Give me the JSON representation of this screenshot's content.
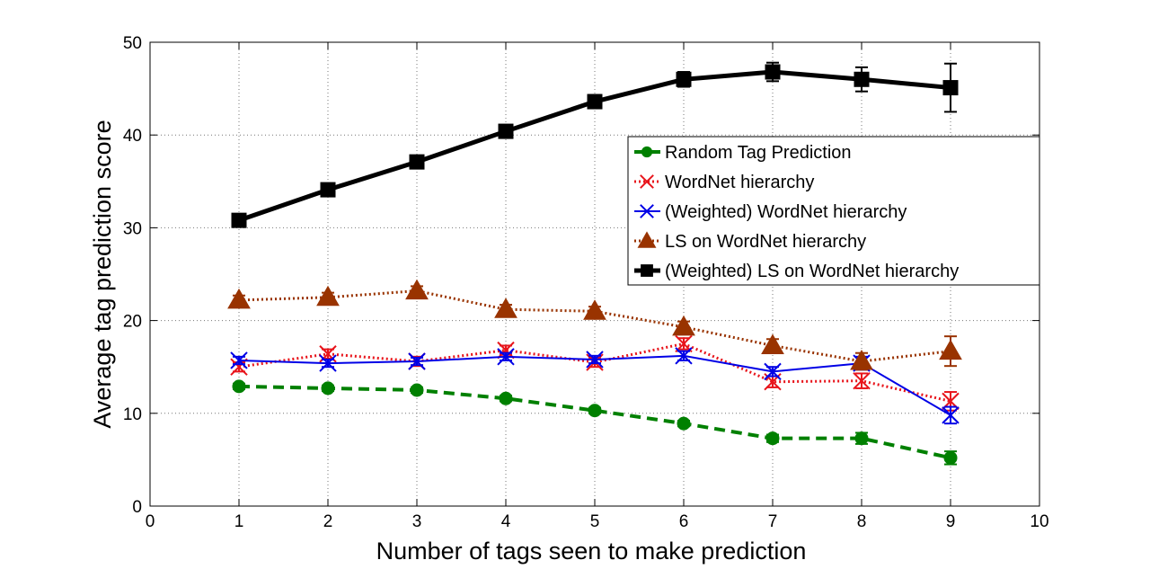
{
  "chart_data": {
    "type": "line",
    "title": "",
    "xlabel": "Number of tags seen to make prediction",
    "ylabel": "Average tag prediction score",
    "xlim": [
      0,
      10
    ],
    "ylim": [
      0,
      50
    ],
    "xticks": [
      0,
      1,
      2,
      3,
      4,
      5,
      6,
      7,
      8,
      9,
      10
    ],
    "yticks": [
      0,
      10,
      20,
      30,
      40,
      50
    ],
    "grid": true,
    "legend_position": "right",
    "x": [
      1,
      2,
      3,
      4,
      5,
      6,
      7,
      8,
      9
    ],
    "series": [
      {
        "name": "Random Tag Prediction",
        "color": "#008000",
        "line_style": "dashed",
        "marker": "circle",
        "values": [
          12.9,
          12.7,
          12.5,
          11.6,
          10.3,
          8.9,
          7.3,
          7.3,
          5.2
        ],
        "errors": [
          0.3,
          0.3,
          0.3,
          0.3,
          0.3,
          0.3,
          0.4,
          0.6,
          0.7
        ]
      },
      {
        "name": "WordNet hierarchy",
        "color": "#e8141b",
        "line_style": "dotted",
        "marker": "x",
        "values": [
          15.0,
          16.4,
          15.6,
          16.8,
          15.5,
          17.5,
          13.4,
          13.5,
          11.3
        ],
        "errors": [
          0.5,
          0.5,
          0.5,
          0.5,
          0.5,
          0.6,
          0.6,
          0.8,
          1.0
        ]
      },
      {
        "name": "(Weighted) WordNet hierarchy",
        "color": "#0000e6",
        "line_style": "solid",
        "marker": "x",
        "values": [
          15.7,
          15.4,
          15.6,
          16.1,
          15.8,
          16.2,
          14.5,
          15.4,
          9.8
        ],
        "errors": [
          0.4,
          0.4,
          0.4,
          0.4,
          0.4,
          0.5,
          0.5,
          0.7,
          0.9
        ]
      },
      {
        "name": "LS on WordNet hierarchy",
        "color": "#993300",
        "line_style": "dotted",
        "marker": "triangle",
        "values": [
          22.2,
          22.5,
          23.2,
          21.2,
          21.0,
          19.3,
          17.3,
          15.6,
          16.7
        ],
        "errors": [
          0.5,
          0.5,
          0.5,
          0.5,
          0.5,
          0.6,
          0.7,
          0.9,
          1.6
        ]
      },
      {
        "name": "(Weighted) LS on WordNet hierarchy",
        "color": "#000000",
        "line_style": "solid",
        "marker": "square",
        "values": [
          30.8,
          34.1,
          37.1,
          40.4,
          43.6,
          46.0,
          46.8,
          46.0,
          45.1
        ],
        "errors": [
          0.6,
          0.6,
          0.6,
          0.6,
          0.7,
          0.8,
          1.0,
          1.3,
          2.6
        ]
      }
    ]
  }
}
